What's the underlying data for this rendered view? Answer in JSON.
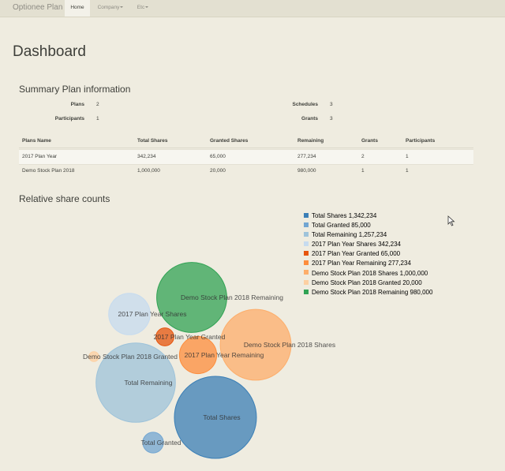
{
  "navbar": {
    "brand": "Optionee Plan",
    "items": [
      {
        "label": "Home",
        "active": true,
        "caret": false
      },
      {
        "label": "Company",
        "active": false,
        "caret": true
      },
      {
        "label": "Etc",
        "active": false,
        "caret": true
      }
    ]
  },
  "page_title": "Dashboard",
  "summary": {
    "heading": "Summary Plan information",
    "plans_label": "Plans",
    "plans_value": "2",
    "participants_label": "Participants",
    "participants_value": "1",
    "schedules_label": "Schedules",
    "schedules_value": "3",
    "grants_label": "Grants",
    "grants_value": "3"
  },
  "table": {
    "columns": [
      "Plans Name",
      "Total Shares",
      "Granted Shares",
      "Remaining",
      "Grants",
      "Participants"
    ],
    "rows": [
      [
        "2017 Plan Year",
        "342,234",
        "65,000",
        "277,234",
        "2",
        "1"
      ],
      [
        "Demo Stock Plan 2018",
        "1,000,000",
        "20,000",
        "980,000",
        "1",
        "1"
      ]
    ]
  },
  "chart_heading": "Relative share counts",
  "chart_data": {
    "type": "bubble",
    "series": [
      {
        "name": "Total Shares",
        "value": 1342234,
        "value_label": "1,342,234",
        "color": "#3b7fb6"
      },
      {
        "name": "Total Granted",
        "value": 85000,
        "value_label": "85,000",
        "color": "#72a6d2"
      },
      {
        "name": "Total Remaining",
        "value": 1257234,
        "value_label": "1,257,234",
        "color": "#9ec3da"
      },
      {
        "name": "2017 Plan Year Shares",
        "value": 342234,
        "value_label": "342,234",
        "color": "#c6dbef"
      },
      {
        "name": "2017 Plan Year Granted",
        "value": 65000,
        "value_label": "65,000",
        "color": "#e6550d"
      },
      {
        "name": "2017 Plan Year Remaining",
        "value": 277234,
        "value_label": "277,234",
        "color": "#fd8d3c"
      },
      {
        "name": "Demo Stock Plan 2018 Shares",
        "value": 1000000,
        "value_label": "1,000,000",
        "color": "#fdae6b"
      },
      {
        "name": "Demo Stock Plan 2018 Granted",
        "value": 20000,
        "value_label": "20,000",
        "color": "#fdd0a2"
      },
      {
        "name": "Demo Stock Plan 2018 Remaining",
        "value": 980000,
        "value_label": "980,000",
        "color": "#31a354"
      }
    ]
  }
}
